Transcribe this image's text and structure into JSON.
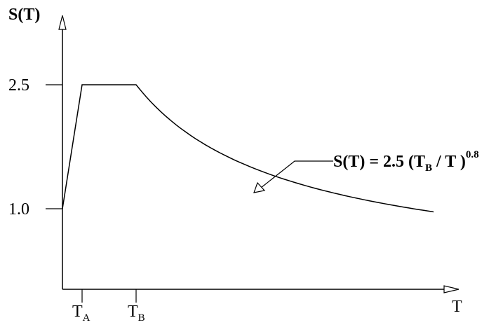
{
  "chart_data": {
    "type": "line",
    "title": "",
    "y_axis_label": "S(T)",
    "x_axis_label": "T",
    "y_ticks": [
      "2.5",
      "1.0"
    ],
    "x_ticks": [
      {
        "main": "T",
        "subscript": "A"
      },
      {
        "main": "T",
        "subscript": "B"
      }
    ],
    "series": [
      {
        "points": [
          {
            "x": 0,
            "y": 1.0,
            "note": "T = 0"
          },
          {
            "x": "T_A",
            "y": 2.5
          },
          {
            "x": "T_B",
            "y": 2.5
          },
          {
            "x": "T > T_B",
            "y": "2.5 (T_B / T)^0.8",
            "note": "decaying curve"
          }
        ]
      }
    ],
    "annotation": {
      "prefix": "S(T) = 2.5 (T",
      "subscript": "B",
      "suffix": " / T )",
      "exponent": "0.8"
    },
    "grid": false
  }
}
